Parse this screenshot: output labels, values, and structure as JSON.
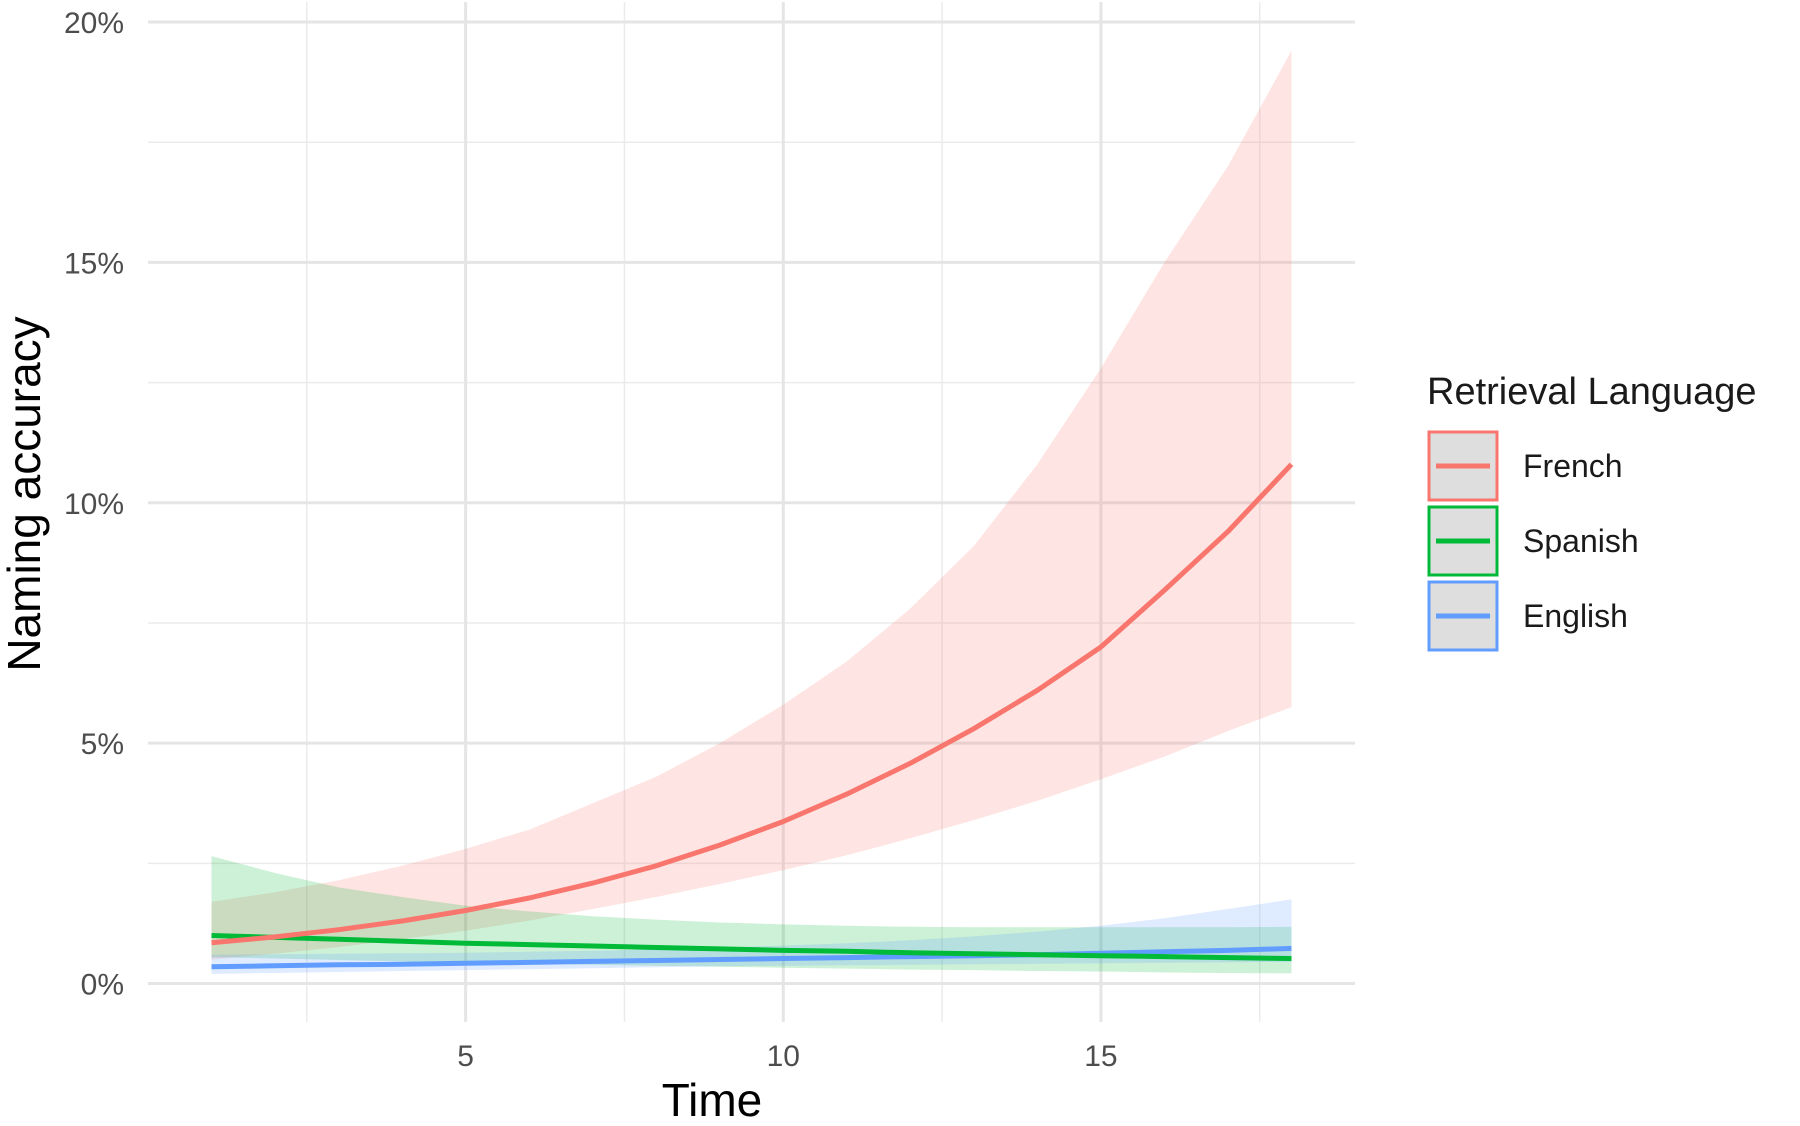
{
  "chart_data": {
    "type": "line",
    "xlabel": "Time",
    "ylabel": "Naming accuracy",
    "xlim": [
      0.0,
      19.0
    ],
    "ylim": [
      -0.008,
      0.2
    ],
    "x_ticks": [
      5,
      10,
      15
    ],
    "x_tick_labels": [
      "5",
      "10",
      "15"
    ],
    "x_minor_ticks": [
      2.5,
      7.5,
      12.5,
      17.5
    ],
    "y_ticks": [
      0,
      0.05,
      0.1,
      0.15,
      0.2
    ],
    "y_tick_labels": [
      "0%",
      "5%",
      "10%",
      "15%",
      "20%"
    ],
    "y_minor_ticks": [
      0.025,
      0.075,
      0.125,
      0.175
    ],
    "grid": true,
    "legend": {
      "title": "Retrieval Language",
      "position": "right"
    },
    "x": [
      1,
      2,
      3,
      4,
      5,
      6,
      7,
      8,
      9,
      10,
      11,
      12,
      13,
      14,
      15,
      16,
      17,
      18
    ],
    "series": [
      {
        "name": "French",
        "color": "#F8766D",
        "values": [
          0.0085,
          0.0097,
          0.0112,
          0.013,
          0.0152,
          0.0178,
          0.0209,
          0.0245,
          0.0288,
          0.0337,
          0.0394,
          0.0458,
          0.053,
          0.061,
          0.07,
          0.0818,
          0.094,
          0.108
        ],
        "lower": [
          0.005,
          0.0062,
          0.0076,
          0.0092,
          0.011,
          0.0131,
          0.0155,
          0.018,
          0.0207,
          0.0236,
          0.0267,
          0.0302,
          0.034,
          0.038,
          0.0425,
          0.0472,
          0.0525,
          0.0575
        ],
        "upper": [
          0.017,
          0.019,
          0.0215,
          0.0245,
          0.028,
          0.032,
          0.0375,
          0.043,
          0.05,
          0.058,
          0.067,
          0.078,
          0.091,
          0.108,
          0.128,
          0.15,
          0.17,
          0.194
        ]
      },
      {
        "name": "Spanish",
        "color": "#00BA38",
        "values": [
          0.01,
          0.0096,
          0.0092,
          0.0088,
          0.0084,
          0.0081,
          0.0078,
          0.0075,
          0.0072,
          0.0069,
          0.0067,
          0.0064,
          0.0062,
          0.006,
          0.0058,
          0.0056,
          0.0054,
          0.0052
        ],
        "lower": [
          0.0055,
          0.0052,
          0.0049,
          0.0046,
          0.0043,
          0.0041,
          0.0039,
          0.0037,
          0.0035,
          0.0033,
          0.0031,
          0.0029,
          0.0028,
          0.0026,
          0.0025,
          0.0023,
          0.0022,
          0.0021
        ],
        "upper": [
          0.0265,
          0.023,
          0.02,
          0.018,
          0.0162,
          0.015,
          0.014,
          0.0133,
          0.0127,
          0.0123,
          0.012,
          0.0118,
          0.0117,
          0.0117,
          0.0117,
          0.0117,
          0.0117,
          0.0118
        ]
      },
      {
        "name": "English",
        "color": "#619CFF",
        "values": [
          0.0035,
          0.0037,
          0.0039,
          0.004,
          0.0042,
          0.0044,
          0.0046,
          0.0048,
          0.005,
          0.0052,
          0.0054,
          0.0056,
          0.0058,
          0.006,
          0.0063,
          0.0066,
          0.0069,
          0.0073
        ],
        "lower": [
          0.002,
          0.0022,
          0.0024,
          0.0026,
          0.0028,
          0.003,
          0.0032,
          0.0034,
          0.0036,
          0.0037,
          0.0038,
          0.0039,
          0.004,
          0.0041,
          0.0042,
          0.0043,
          0.0044,
          0.0045
        ],
        "upper": [
          0.006,
          0.0061,
          0.0062,
          0.0063,
          0.0064,
          0.0066,
          0.0068,
          0.0071,
          0.0075,
          0.0079,
          0.0084,
          0.009,
          0.0098,
          0.0108,
          0.012,
          0.0136,
          0.0155,
          0.0175
        ]
      }
    ]
  }
}
